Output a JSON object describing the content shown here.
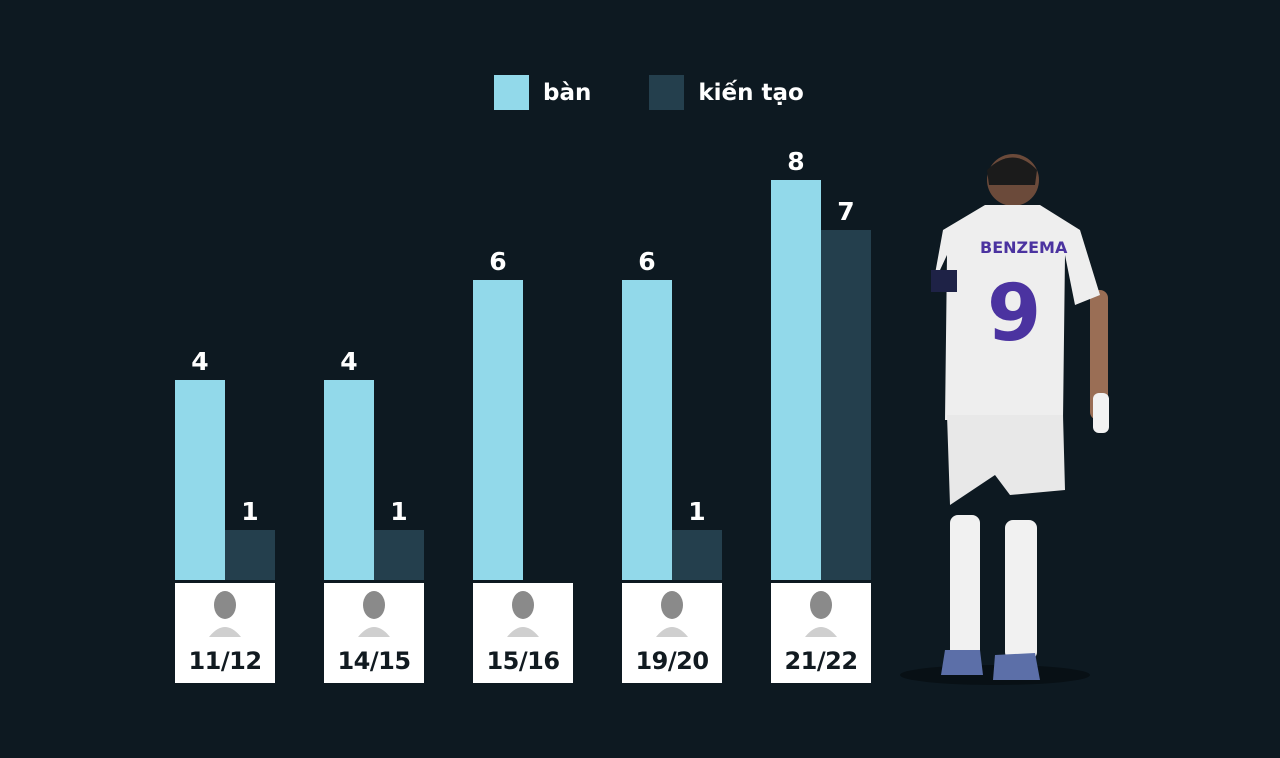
{
  "legend": {
    "goals": {
      "label": "bàn",
      "color": "#92d9ea"
    },
    "assists": {
      "label": "kiến tạo",
      "color": "#243f4d"
    }
  },
  "groups": [
    {
      "season": "11/12",
      "goals": 4,
      "assists": 1,
      "goals_label": "4",
      "assists_label": "1"
    },
    {
      "season": "14/15",
      "goals": 4,
      "assists": 1,
      "goals_label": "4",
      "assists_label": "1"
    },
    {
      "season": "15/16",
      "goals": 6,
      "assists": 0,
      "goals_label": "6",
      "assists_label": ""
    },
    {
      "season": "19/20",
      "goals": 6,
      "assists": 1,
      "goals_label": "6",
      "assists_label": "1"
    },
    {
      "season": "21/22",
      "goals": 8,
      "assists": 7,
      "goals_label": "8",
      "assists_label": "7"
    }
  ],
  "player": {
    "shirt_name": "BENZEMA",
    "shirt_number": "9"
  },
  "chart_data": {
    "type": "bar",
    "title": "",
    "xlabel": "",
    "ylabel": "",
    "categories": [
      "11/12",
      "14/15",
      "15/16",
      "19/20",
      "21/22"
    ],
    "series": [
      {
        "name": "bàn",
        "values": [
          4,
          4,
          6,
          6,
          8
        ],
        "color": "#92d9ea"
      },
      {
        "name": "kiến tạo",
        "values": [
          1,
          1,
          0,
          1,
          7
        ],
        "color": "#243f4d"
      }
    ],
    "ylim": [
      0,
      8
    ],
    "grid": false,
    "legend_position": "top"
  }
}
